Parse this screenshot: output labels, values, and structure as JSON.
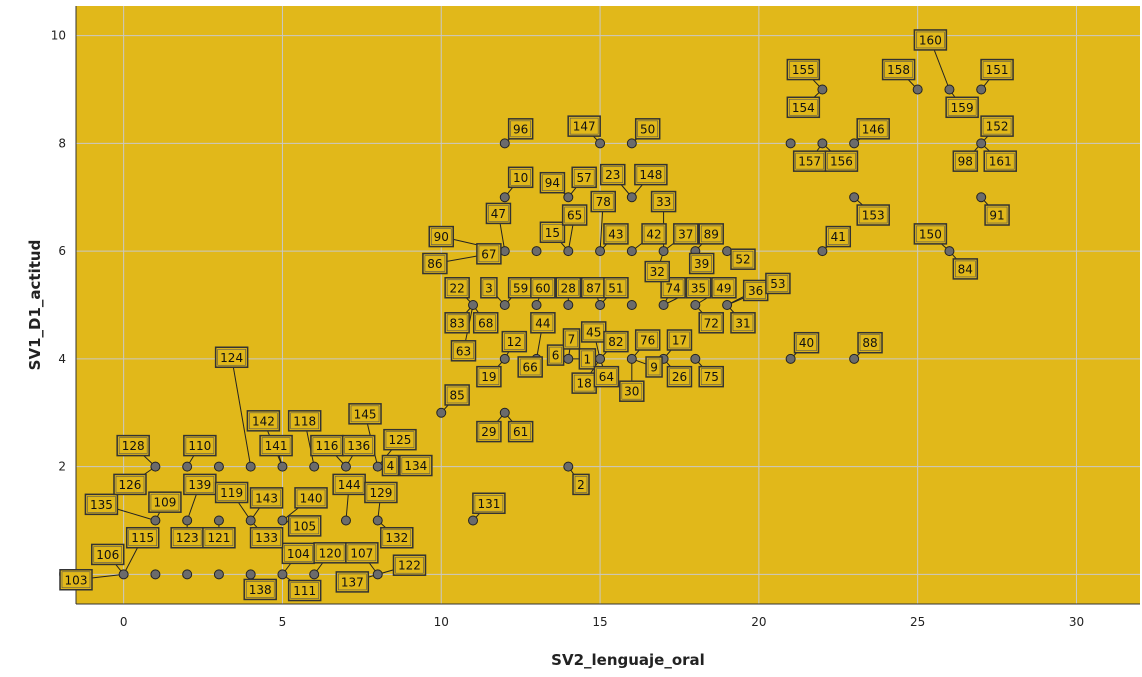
{
  "chart_data": {
    "type": "scatter",
    "xlabel": "SV2_lenguaje_oral",
    "ylabel": "SV1_D1_actitud",
    "xlim": [
      -1.5,
      32
    ],
    "ylim": [
      -0.55,
      10.55
    ],
    "xticks": [
      0,
      5,
      10,
      15,
      20,
      25,
      30
    ],
    "yticks": [
      0,
      2,
      4,
      6,
      8,
      10
    ],
    "grid": true,
    "colors": {
      "background": "#E1B81A",
      "point_fill": "#6B6B6B",
      "point_stroke": "#222222",
      "label_border": "#333333",
      "grid": "#C8C8C8"
    },
    "points": [
      {
        "x": 0,
        "y": 0,
        "label": "103",
        "lx": -1.5,
        "ly": -0.1
      },
      {
        "x": 0,
        "y": 0,
        "label": "106",
        "lx": -0.5,
        "ly": 0.37
      },
      {
        "x": 0,
        "y": 0,
        "label": "115",
        "lx": 0.6,
        "ly": 0.68
      },
      {
        "x": 1,
        "y": 0,
        "label": ""
      },
      {
        "x": 2,
        "y": 0,
        "label": ""
      },
      {
        "x": 3,
        "y": 0,
        "label": ""
      },
      {
        "x": 4,
        "y": 0,
        "label": "138",
        "lx": 4.3,
        "ly": -0.28
      },
      {
        "x": 5,
        "y": 0,
        "label": "104",
        "lx": 5.5,
        "ly": 0.39
      },
      {
        "x": 5,
        "y": 0,
        "label": "111",
        "lx": 5.7,
        "ly": -0.3
      },
      {
        "x": 6,
        "y": 0,
        "label": "120",
        "lx": 6.5,
        "ly": 0.4
      },
      {
        "x": 8,
        "y": 0,
        "label": "107",
        "lx": 7.5,
        "ly": 0.4
      },
      {
        "x": 8,
        "y": 0,
        "label": "137",
        "lx": 7.2,
        "ly": -0.14
      },
      {
        "x": 8,
        "y": 0,
        "label": "122",
        "lx": 9,
        "ly": 0.17
      },
      {
        "x": 1,
        "y": 1,
        "label": "135",
        "lx": -0.7,
        "ly": 1.3
      },
      {
        "x": 1,
        "y": 1,
        "label": "109",
        "lx": 1.3,
        "ly": 1.34
      },
      {
        "x": 2,
        "y": 1,
        "label": "123",
        "lx": 2,
        "ly": 0.68
      },
      {
        "x": 2,
        "y": 1,
        "label": "139",
        "lx": 2.4,
        "ly": 1.67
      },
      {
        "x": 3,
        "y": 1,
        "label": "121",
        "lx": 3,
        "ly": 0.68
      },
      {
        "x": 4,
        "y": 1,
        "label": "119",
        "lx": 3.4,
        "ly": 1.52
      },
      {
        "x": 4,
        "y": 1,
        "label": "143",
        "lx": 4.5,
        "ly": 1.42
      },
      {
        "x": 4,
        "y": 1,
        "label": "133",
        "lx": 4.5,
        "ly": 0.68
      },
      {
        "x": 5,
        "y": 1,
        "label": "105",
        "lx": 5.7,
        "ly": 0.9
      },
      {
        "x": 5,
        "y": 1,
        "label": "140",
        "lx": 5.9,
        "ly": 1.42
      },
      {
        "x": 7,
        "y": 1,
        "label": "144",
        "lx": 7.1,
        "ly": 1.67
      },
      {
        "x": 8,
        "y": 1,
        "label": "132",
        "lx": 8.6,
        "ly": 0.68
      },
      {
        "x": 1,
        "y": 2,
        "label": "128",
        "lx": 0.3,
        "ly": 2.39
      },
      {
        "x": 1,
        "y": 2,
        "label": "126",
        "lx": 0.2,
        "ly": 1.67
      },
      {
        "x": 2,
        "y": 2,
        "label": "110",
        "lx": 2.4,
        "ly": 2.39
      },
      {
        "x": 3,
        "y": 2,
        "label": ""
      },
      {
        "x": 4,
        "y": 2,
        "label": "124",
        "lx": 3.4,
        "ly": 4.03
      },
      {
        "x": 5,
        "y": 2,
        "label": "142",
        "lx": 4.4,
        "ly": 2.85
      },
      {
        "x": 5,
        "y": 2,
        "label": "141",
        "lx": 4.8,
        "ly": 2.39
      },
      {
        "x": 6,
        "y": 2,
        "label": "118",
        "lx": 5.7,
        "ly": 2.85
      },
      {
        "x": 7,
        "y": 2,
        "label": "116",
        "lx": 6.4,
        "ly": 2.39
      },
      {
        "x": 7,
        "y": 2,
        "label": "136",
        "lx": 7.4,
        "ly": 2.39
      },
      {
        "x": 8,
        "y": 2,
        "label": "145",
        "lx": 7.6,
        "ly": 2.98
      },
      {
        "x": 8,
        "y": 2,
        "label": "125",
        "lx": 8.7,
        "ly": 2.5
      },
      {
        "x": 8,
        "y": 2,
        "label": "4",
        "lx": 8.4,
        "ly": 2.02
      },
      {
        "x": 8,
        "y": 2,
        "label": "134",
        "lx": 9.2,
        "ly": 2.02
      },
      {
        "x": 8,
        "y": 1,
        "label": "129",
        "lx": 8.1,
        "ly": 1.52
      },
      {
        "x": 10,
        "y": 3,
        "label": "85",
        "lx": 10.5,
        "ly": 3.33
      },
      {
        "x": 11,
        "y": 1,
        "label": "131",
        "lx": 11.5,
        "ly": 1.32
      },
      {
        "x": 12,
        "y": 3,
        "label": "29",
        "lx": 11.5,
        "ly": 2.65
      },
      {
        "x": 12,
        "y": 3,
        "label": "61",
        "lx": 12.5,
        "ly": 2.65
      },
      {
        "x": 14,
        "y": 2,
        "label": "2",
        "lx": 14.4,
        "ly": 1.67
      },
      {
        "x": 12,
        "y": 4,
        "label": "19",
        "lx": 11.5,
        "ly": 3.67
      },
      {
        "x": 12,
        "y": 4,
        "label": "12",
        "lx": 12.3,
        "ly": 4.32
      },
      {
        "x": 13,
        "y": 4,
        "label": "66",
        "lx": 12.8,
        "ly": 3.85
      },
      {
        "x": 13,
        "y": 4,
        "label": "44",
        "lx": 13.2,
        "ly": 4.67
      },
      {
        "x": 14,
        "y": 4,
        "label": "6",
        "lx": 13.6,
        "ly": 4.07
      },
      {
        "x": 14,
        "y": 4,
        "label": "7",
        "lx": 14.1,
        "ly": 4.37
      },
      {
        "x": 14,
        "y": 4,
        "label": "1",
        "lx": 14.6,
        "ly": 4.0
      },
      {
        "x": 15,
        "y": 4,
        "label": "18",
        "lx": 14.5,
        "ly": 3.55
      },
      {
        "x": 15,
        "y": 4,
        "label": "45",
        "lx": 14.8,
        "ly": 4.5
      },
      {
        "x": 15,
        "y": 4,
        "label": "82",
        "lx": 15.5,
        "ly": 4.32
      },
      {
        "x": 15,
        "y": 4,
        "label": "64",
        "lx": 15.2,
        "ly": 3.67
      },
      {
        "x": 16,
        "y": 4,
        "label": "30",
        "lx": 16,
        "ly": 3.4
      },
      {
        "x": 16,
        "y": 4,
        "label": "76",
        "lx": 16.5,
        "ly": 4.35
      },
      {
        "x": 16,
        "y": 4,
        "label": "9",
        "lx": 16.7,
        "ly": 3.85
      },
      {
        "x": 17,
        "y": 4,
        "label": "17",
        "lx": 17.5,
        "ly": 4.35
      },
      {
        "x": 17,
        "y": 4,
        "label": "26",
        "lx": 17.5,
        "ly": 3.67
      },
      {
        "x": 18,
        "y": 4,
        "label": "75",
        "lx": 18.5,
        "ly": 3.67
      },
      {
        "x": 11,
        "y": 5,
        "label": "22",
        "lx": 10.5,
        "ly": 5.32
      },
      {
        "x": 11,
        "y": 5,
        "label": "83",
        "lx": 10.5,
        "ly": 4.67
      },
      {
        "x": 11,
        "y": 5,
        "label": "68",
        "lx": 11.4,
        "ly": 4.67
      },
      {
        "x": 11,
        "y": 5,
        "label": "63",
        "lx": 10.7,
        "ly": 4.15
      },
      {
        "x": 12,
        "y": 5,
        "label": "3",
        "lx": 11.5,
        "ly": 5.32
      },
      {
        "x": 12,
        "y": 5,
        "label": "59",
        "lx": 12.5,
        "ly": 5.32
      },
      {
        "x": 13,
        "y": 5,
        "label": "60",
        "lx": 13.2,
        "ly": 5.32
      },
      {
        "x": 13,
        "y": 5,
        "label": ""
      },
      {
        "x": 14,
        "y": 5,
        "label": "28",
        "lx": 14,
        "ly": 5.32
      },
      {
        "x": 15,
        "y": 5,
        "label": "87",
        "lx": 14.8,
        "ly": 5.32
      },
      {
        "x": 15,
        "y": 5,
        "label": "51",
        "lx": 15.5,
        "ly": 5.32
      },
      {
        "x": 16,
        "y": 5,
        "label": ""
      },
      {
        "x": 17,
        "y": 5,
        "label": "74",
        "lx": 17.3,
        "ly": 5.32
      },
      {
        "x": 17,
        "y": 5,
        "label": "35",
        "lx": 18.1,
        "ly": 5.32
      },
      {
        "x": 18,
        "y": 5,
        "label": "72",
        "lx": 18.5,
        "ly": 4.67
      },
      {
        "x": 18,
        "y": 5,
        "label": "49",
        "lx": 18.9,
        "ly": 5.32
      },
      {
        "x": 19,
        "y": 5,
        "label": "36",
        "lx": 19.9,
        "ly": 5.27
      },
      {
        "x": 19,
        "y": 5,
        "label": "31",
        "lx": 19.5,
        "ly": 4.67
      },
      {
        "x": 19,
        "y": 5,
        "label": "53",
        "lx": 20.6,
        "ly": 5.4
      },
      {
        "x": 12,
        "y": 6,
        "label": "90",
        "lx": 10,
        "ly": 6.27
      },
      {
        "x": 12,
        "y": 6,
        "label": "86",
        "lx": 9.8,
        "ly": 5.77
      },
      {
        "x": 12,
        "y": 6,
        "label": "67",
        "lx": 11.5,
        "ly": 5.95
      },
      {
        "x": 12,
        "y": 6,
        "label": "47",
        "lx": 11.8,
        "ly": 6.7
      },
      {
        "x": 13,
        "y": 6,
        "label": ""
      },
      {
        "x": 14,
        "y": 6,
        "label": "15",
        "lx": 13.5,
        "ly": 6.35
      },
      {
        "x": 14,
        "y": 6,
        "label": "65",
        "lx": 14.2,
        "ly": 6.67
      },
      {
        "x": 15,
        "y": 6,
        "label": "78",
        "lx": 15.1,
        "ly": 6.92
      },
      {
        "x": 15,
        "y": 6,
        "label": "43",
        "lx": 15.5,
        "ly": 6.32
      },
      {
        "x": 16,
        "y": 6,
        "label": "42",
        "lx": 16.7,
        "ly": 6.32
      },
      {
        "x": 17,
        "y": 6,
        "label": "33",
        "lx": 17,
        "ly": 6.92
      },
      {
        "x": 17,
        "y": 6,
        "label": "37",
        "lx": 17.7,
        "ly": 6.32
      },
      {
        "x": 17,
        "y": 6,
        "label": "32",
        "lx": 16.8,
        "ly": 5.62
      },
      {
        "x": 18,
        "y": 6,
        "label": "89",
        "lx": 18.5,
        "ly": 6.32
      },
      {
        "x": 18,
        "y": 6,
        "label": "39",
        "lx": 18.2,
        "ly": 5.77
      },
      {
        "x": 19,
        "y": 6,
        "label": "52",
        "lx": 19.5,
        "ly": 5.85
      },
      {
        "x": 12,
        "y": 7,
        "label": "10",
        "lx": 12.5,
        "ly": 7.37
      },
      {
        "x": 14,
        "y": 7,
        "label": "94",
        "lx": 13.5,
        "ly": 7.27
      },
      {
        "x": 14,
        "y": 7,
        "label": "57",
        "lx": 14.5,
        "ly": 7.37
      },
      {
        "x": 16,
        "y": 7,
        "label": "23",
        "lx": 15.4,
        "ly": 7.42
      },
      {
        "x": 16,
        "y": 7,
        "label": "148",
        "lx": 16.6,
        "ly": 7.42
      },
      {
        "x": 12,
        "y": 8,
        "label": "96",
        "lx": 12.5,
        "ly": 8.27
      },
      {
        "x": 15,
        "y": 8,
        "label": "147",
        "lx": 14.5,
        "ly": 8.32
      },
      {
        "x": 16,
        "y": 8,
        "label": "50",
        "lx": 16.5,
        "ly": 8.27
      },
      {
        "x": 21,
        "y": 4,
        "label": "40",
        "lx": 21.5,
        "ly": 4.3
      },
      {
        "x": 23,
        "y": 4,
        "label": "88",
        "lx": 23.5,
        "ly": 4.3
      },
      {
        "x": 22,
        "y": 6,
        "label": "41",
        "lx": 22.5,
        "ly": 6.27
      },
      {
        "x": 26,
        "y": 6,
        "label": "150",
        "lx": 25.4,
        "ly": 6.32
      },
      {
        "x": 26,
        "y": 6,
        "label": "84",
        "lx": 26.5,
        "ly": 5.67
      },
      {
        "x": 27,
        "y": 7,
        "label": "91",
        "lx": 27.5,
        "ly": 6.67
      },
      {
        "x": 23,
        "y": 7,
        "label": "153",
        "lx": 23.6,
        "ly": 6.67
      },
      {
        "x": 21,
        "y": 8,
        "label": ""
      },
      {
        "x": 22,
        "y": 8,
        "label": "157",
        "lx": 21.6,
        "ly": 7.67
      },
      {
        "x": 22,
        "y": 8,
        "label": "156",
        "lx": 22.6,
        "ly": 7.67
      },
      {
        "x": 23,
        "y": 8,
        "label": "146",
        "lx": 23.6,
        "ly": 8.27
      },
      {
        "x": 22,
        "y": 9,
        "label": "155",
        "lx": 21.4,
        "ly": 9.37
      },
      {
        "x": 22,
        "y": 9,
        "label": "154",
        "lx": 21.4,
        "ly": 8.67
      },
      {
        "x": 25,
        "y": 9,
        "label": "158",
        "lx": 24.4,
        "ly": 9.37
      },
      {
        "x": 26,
        "y": 9,
        "label": "160",
        "lx": 25.4,
        "ly": 9.92
      },
      {
        "x": 26,
        "y": 9,
        "label": "159",
        "lx": 26.4,
        "ly": 8.67
      },
      {
        "x": 27,
        "y": 9,
        "label": "151",
        "lx": 27.5,
        "ly": 9.37
      },
      {
        "x": 27,
        "y": 8,
        "label": "152",
        "lx": 27.5,
        "ly": 8.32
      },
      {
        "x": 27,
        "y": 8,
        "label": "98",
        "lx": 26.5,
        "ly": 7.67
      },
      {
        "x": 27,
        "y": 8,
        "label": "161",
        "lx": 27.6,
        "ly": 7.67
      }
    ]
  }
}
